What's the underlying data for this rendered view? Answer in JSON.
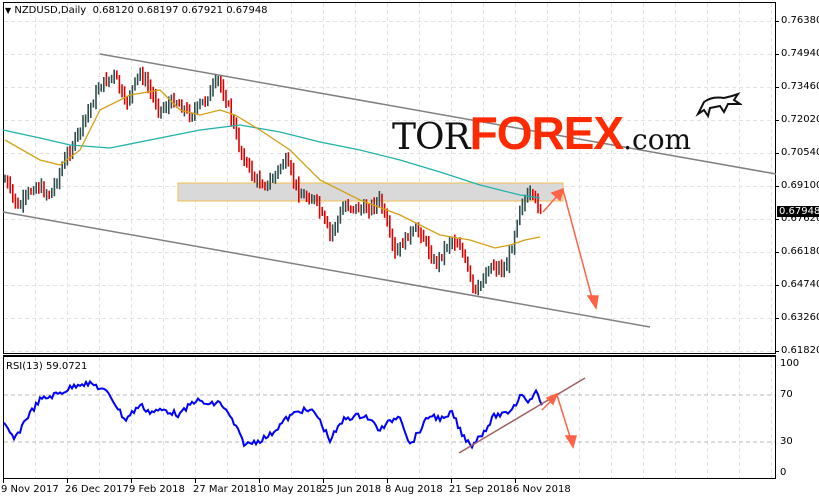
{
  "header": {
    "symbol_timeframe": "NZDUSD,Daily",
    "ohlc": "0.68120 0.68197 0.67921 0.67948",
    "menu_icon": "triangle-down-icon"
  },
  "price_axis": {
    "ticks": [
      "0.76380",
      "0.74940",
      "0.73460",
      "0.72020",
      "0.70540",
      "0.69100",
      "0.67620",
      "0.66180",
      "0.64740",
      "0.63260",
      "0.61820"
    ],
    "current_price": "0.67948"
  },
  "rsi": {
    "title": "RSI(13) 59.0721",
    "ticks": [
      "100",
      "70",
      "30",
      "0"
    ]
  },
  "time_axis": {
    "labels": [
      "9 Nov 2017",
      "26 Dec 2017",
      "9 Feb 2018",
      "27 Mar 2018",
      "10 May 2018",
      "25 Jun 2018",
      "8 Aug 2018",
      "21 Sep 2018",
      "6 Nov 2018"
    ]
  },
  "logo": {
    "tor": "TOR",
    "forex": "FOREX",
    "com": ".com",
    "icon": "bull-icon"
  },
  "colors": {
    "bull_candle": "#2f4f4f",
    "bear_candle": "#e00000",
    "ma_fast": "#d4a017",
    "ma_slow": "#20b2aa",
    "rsi_line": "#0000ff",
    "channel": "#808080",
    "arrow": "#ff6347",
    "zone_fill": "#d9d9d9",
    "zone_border": "#f0c050"
  },
  "chart_data": [
    {
      "type": "line",
      "title": "NZDUSD, Daily",
      "subtitle": "O 0.68120 H 0.68197 L 0.67921 C 0.67948",
      "xlabel": "",
      "ylabel": "",
      "ylim": [
        0.6182,
        0.771
      ],
      "x": [
        "9 Nov 2017",
        "26 Dec 2017",
        "9 Feb 2018",
        "27 Mar 2018",
        "10 May 2018",
        "25 Jun 2018",
        "8 Aug 2018",
        "21 Sep 2018",
        "6 Nov 2018"
      ],
      "series": [
        {
          "name": "Close (approx)",
          "values": [
            0.688,
            0.72,
            0.744,
            0.742,
            0.69,
            0.684,
            0.664,
            0.655,
            0.688
          ]
        },
        {
          "name": "MA fast (approx)",
          "values": [
            0.71,
            0.697,
            0.731,
            0.738,
            0.715,
            0.7,
            0.688,
            0.671,
            0.67
          ]
        },
        {
          "name": "MA slow (approx)",
          "values": [
            0.72,
            0.708,
            0.72,
            0.729,
            0.719,
            0.713,
            0.706,
            0.696,
            0.688
          ]
        }
      ],
      "annotations": [
        "Resistance zone 0.6850-0.6900",
        "Descending channel",
        "Forecast arrow up to ~0.690 then down to ~0.641"
      ],
      "grid": true,
      "legend": "none"
    },
    {
      "type": "line",
      "title": "RSI(13) 59.0721",
      "ylim": [
        0,
        100
      ],
      "levels": [
        30,
        70
      ],
      "x": [
        "9 Nov 2017",
        "26 Dec 2017",
        "9 Feb 2018",
        "27 Mar 2018",
        "10 May 2018",
        "25 Jun 2018",
        "8 Aug 2018",
        "21 Sep 2018",
        "6 Nov 2018"
      ],
      "series": [
        {
          "name": "RSI(13)",
          "values": [
            48,
            80,
            56,
            62,
            36,
            48,
            30,
            40,
            66
          ]
        }
      ],
      "annotations": [
        "Rising trendline",
        "Forecast arrow down to ~35"
      ]
    }
  ]
}
